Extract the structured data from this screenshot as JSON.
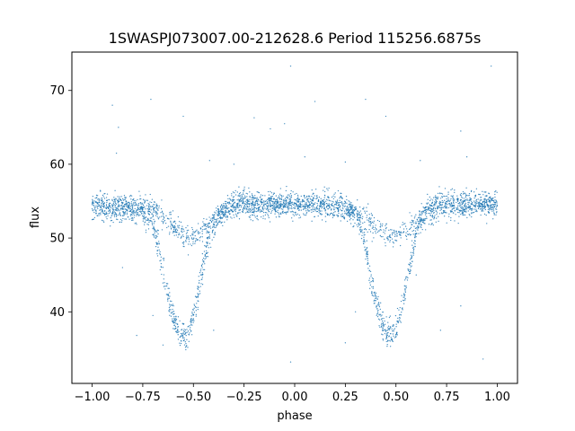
{
  "chart_data": {
    "type": "scatter",
    "title": "1SWASPJ073007.00-212628.6 Period 115256.6875s",
    "xlabel": "phase",
    "ylabel": "flux",
    "xlim": [
      -1.1,
      1.1
    ],
    "ylim": [
      30.3,
      75.2
    ],
    "xticks": [
      -1.0,
      -0.75,
      -0.5,
      -0.25,
      0.0,
      0.25,
      0.5,
      0.75,
      1.0
    ],
    "xtick_labels": [
      "−1.00",
      "−0.75",
      "−0.50",
      "−0.25",
      "0.00",
      "0.25",
      "0.50",
      "0.75",
      "1.00"
    ],
    "yticks": [
      40,
      50,
      60,
      70
    ],
    "ytick_labels": [
      "40",
      "50",
      "60",
      "70"
    ],
    "grid": false,
    "marker_color": "#1f77b4",
    "series": [
      {
        "profile": "main_branch",
        "x": [
          -1.0,
          -0.95,
          -0.9,
          -0.85,
          -0.8,
          -0.75,
          -0.7,
          -0.68,
          -0.66,
          -0.64,
          -0.62,
          -0.6,
          -0.58,
          -0.56,
          -0.54,
          -0.52,
          -0.5,
          -0.48,
          -0.46,
          -0.44,
          -0.42,
          -0.4,
          -0.38,
          -0.35,
          -0.3,
          -0.25,
          -0.2,
          -0.1,
          0.0,
          0.1,
          0.2,
          0.25,
          0.3,
          0.32,
          0.34,
          0.36,
          0.38,
          0.4,
          0.42,
          0.44,
          0.46,
          0.48,
          0.5,
          0.52,
          0.54,
          0.56,
          0.58,
          0.6,
          0.62,
          0.65,
          0.7,
          0.75,
          0.8,
          0.9,
          1.0
        ],
        "y": [
          54.5,
          54.2,
          54.0,
          53.8,
          53.6,
          53.3,
          52.0,
          50.0,
          47.0,
          44.0,
          41.5,
          39.2,
          37.8,
          37.0,
          36.8,
          37.5,
          39.5,
          42.0,
          45.0,
          48.0,
          50.5,
          52.0,
          53.0,
          53.8,
          54.2,
          54.3,
          54.0,
          54.2,
          54.6,
          54.4,
          54.2,
          54.0,
          53.2,
          52.0,
          50.0,
          47.0,
          44.0,
          41.5,
          39.2,
          37.8,
          37.0,
          36.8,
          37.5,
          39.5,
          42.0,
          45.0,
          48.0,
          50.5,
          52.0,
          53.2,
          53.8,
          54.0,
          54.2,
          54.5,
          54.6
        ]
      },
      {
        "profile": "secondary_branch",
        "x": [
          -1.0,
          -0.95,
          -0.9,
          -0.85,
          -0.8,
          -0.75,
          -0.7,
          -0.65,
          -0.6,
          -0.55,
          -0.5,
          -0.45,
          -0.4,
          -0.35,
          -0.3,
          -0.25,
          -0.2,
          -0.1,
          0.0,
          0.1,
          0.2,
          0.25,
          0.3,
          0.35,
          0.4,
          0.45,
          0.5,
          0.55,
          0.6,
          0.65,
          0.7,
          0.75,
          0.8,
          0.9,
          1.0
        ],
        "y": [
          54.8,
          54.7,
          54.6,
          54.8,
          54.7,
          54.4,
          54.0,
          53.0,
          51.6,
          50.5,
          50.0,
          50.8,
          52.2,
          53.8,
          55.0,
          55.3,
          55.0,
          54.8,
          54.6,
          54.7,
          54.4,
          54.0,
          53.5,
          52.8,
          51.6,
          50.5,
          50.2,
          51.0,
          52.6,
          54.0,
          55.0,
          55.2,
          55.0,
          54.8,
          54.6
        ]
      }
    ],
    "outliers": [
      {
        "x": -0.9,
        "y": 68.0
      },
      {
        "x": -0.87,
        "y": 65.0
      },
      {
        "x": -0.71,
        "y": 68.8
      },
      {
        "x": -0.55,
        "y": 66.5
      },
      {
        "x": -0.2,
        "y": 66.3
      },
      {
        "x": -0.12,
        "y": 64.8
      },
      {
        "x": -0.05,
        "y": 65.5
      },
      {
        "x": -0.02,
        "y": 73.3
      },
      {
        "x": 0.1,
        "y": 68.5
      },
      {
        "x": 0.35,
        "y": 68.8
      },
      {
        "x": 0.45,
        "y": 66.5
      },
      {
        "x": 0.82,
        "y": 64.5
      },
      {
        "x": 0.97,
        "y": 73.3
      },
      {
        "x": -0.88,
        "y": 61.5
      },
      {
        "x": -0.42,
        "y": 60.5
      },
      {
        "x": -0.3,
        "y": 60.0
      },
      {
        "x": 0.05,
        "y": 61.0
      },
      {
        "x": 0.25,
        "y": 60.3
      },
      {
        "x": 0.62,
        "y": 60.5
      },
      {
        "x": 0.85,
        "y": 61.0
      },
      {
        "x": -0.78,
        "y": 36.8
      },
      {
        "x": -0.65,
        "y": 35.5
      },
      {
        "x": -0.4,
        "y": 37.5
      },
      {
        "x": -0.02,
        "y": 33.2
      },
      {
        "x": 0.25,
        "y": 35.8
      },
      {
        "x": 0.72,
        "y": 37.5
      },
      {
        "x": 0.93,
        "y": 33.6
      },
      {
        "x": 0.82,
        "y": 40.8
      },
      {
        "x": -0.85,
        "y": 46.0
      },
      {
        "x": -0.7,
        "y": 39.5
      },
      {
        "x": 0.3,
        "y": 40.0
      },
      {
        "x": 0.6,
        "y": 45.0
      }
    ]
  }
}
